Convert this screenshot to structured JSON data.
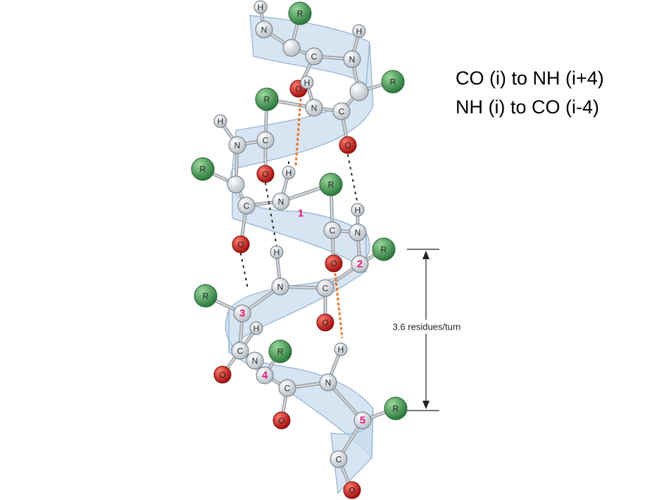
{
  "rules": [
    "CO (i) to NH (i+4)",
    "NH (i) to CO (i-4)"
  ],
  "pitch_label": "3.6 residues/turn",
  "residue_numbers": [
    "1",
    "2",
    "3",
    "4",
    "5"
  ],
  "atom_symbols": {
    "nitrogen": "N",
    "carbon": "C",
    "oxygen": "O",
    "hydrogen": "H",
    "side_chain": "R"
  },
  "colors": {
    "ribbon": "#c9dcee",
    "ribbon_edge": "#8fb1d2",
    "side_chain": "#3f9a55",
    "oxygen": "#cc2222",
    "backbone_atom": "#f2f4f7",
    "residue_number": "#e0127a",
    "highlight_bond": "#e8752a",
    "hbond": "#222222"
  }
}
